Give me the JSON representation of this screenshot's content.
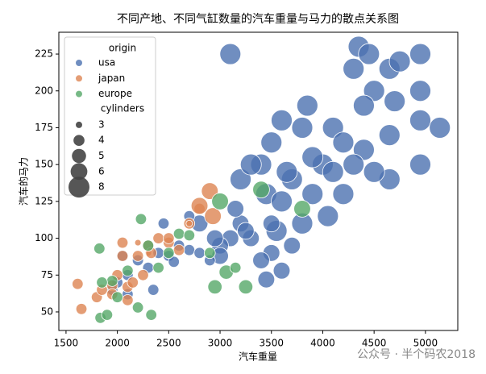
{
  "chart_data": {
    "type": "scatter",
    "title": "不同产地、不同气缸数量的汽车重量与马力的散点关系图",
    "x_label": "汽车重量",
    "y_label": "汽车的马力",
    "xlim": [
      1430,
      5315
    ],
    "ylim": [
      37.4,
      239.8
    ],
    "xticks": [
      1500,
      2000,
      2500,
      3000,
      3500,
      4000,
      4500,
      5000
    ],
    "yticks": [
      50,
      75,
      100,
      125,
      150,
      175,
      200,
      225
    ],
    "grid": false,
    "legend_position": "upper left",
    "hue_title": "origin",
    "size_title": "cylinders",
    "size_levels": [
      3,
      4,
      5,
      6,
      8
    ],
    "series": [
      {
        "name": "usa",
        "color": "#4c72b0",
        "x": [
          3100,
          4350,
          4450,
          4950,
          4300,
          4650,
          4750,
          4500,
          4950,
          4700,
          3850,
          4400,
          4950,
          5140,
          4650,
          4100,
          3800,
          3600,
          3500,
          4200,
          4400,
          4000,
          4300,
          4950,
          3400,
          4650,
          3700,
          3200,
          4200,
          3900,
          3450,
          3600,
          4050,
          3800,
          3550,
          3650,
          3900,
          3300,
          4500,
          4100,
          3200,
          3100,
          3300,
          3500,
          3400,
          2800,
          3000,
          3450,
          3600,
          3250,
          3000,
          3700,
          3150,
          2950,
          3500,
          2400,
          2600,
          2200,
          2100,
          2000,
          2300,
          2700,
          2500,
          2800,
          2050,
          1950,
          2350,
          2550,
          2900,
          2450,
          2700,
          2100
        ],
        "values": [
          225,
          230,
          225,
          225,
          215,
          215,
          220,
          200,
          200,
          193,
          190,
          190,
          180,
          175,
          170,
          175,
          175,
          180,
          165,
          165,
          160,
          150,
          150,
          150,
          150,
          140,
          140,
          140,
          130,
          130,
          130,
          125,
          115,
          110,
          105,
          145,
          155,
          150,
          145,
          145,
          110,
          100,
          100,
          90,
          85,
          110,
          95,
          72,
          78,
          105,
          88,
          95,
          120,
          100,
          110,
          90,
          95,
          85,
          75,
          70,
          80,
          92,
          88,
          90,
          88,
          65,
          65,
          84,
          85,
          110,
          115,
          62
        ],
        "cylinders": [
          8,
          8,
          8,
          8,
          8,
          8,
          8,
          8,
          8,
          8,
          8,
          8,
          8,
          8,
          8,
          8,
          8,
          8,
          8,
          8,
          8,
          8,
          8,
          8,
          8,
          8,
          8,
          8,
          8,
          8,
          8,
          8,
          8,
          8,
          8,
          8,
          8,
          8,
          8,
          8,
          6,
          6,
          6,
          6,
          6,
          6,
          6,
          6,
          6,
          6,
          6,
          6,
          6,
          6,
          6,
          4,
          4,
          4,
          4,
          4,
          4,
          4,
          4,
          4,
          4,
          4,
          4,
          4,
          4,
          4,
          4,
          4
        ]
      },
      {
        "name": "japan",
        "color": "#dd8452",
        "x": [
          1613,
          1650,
          1800,
          1850,
          1950,
          2000,
          2100,
          2200,
          2300,
          2400,
          2500,
          2600,
          2700,
          2800,
          2900,
          2930,
          2800,
          2050,
          2150,
          2300,
          2200,
          2700,
          2330,
          2250,
          2100,
          1950,
          2500,
          2050
        ],
        "values": [
          69,
          52,
          60,
          65,
          68,
          75,
          67,
          88,
          95,
          100,
          97,
          92,
          110,
          120,
          132,
          115,
          122,
          97,
          70,
          90,
          97,
          110,
          90,
          75,
          58,
          62,
          100,
          88
        ],
        "cylinders": [
          4,
          4,
          4,
          4,
          4,
          4,
          4,
          4,
          4,
          4,
          4,
          4,
          4,
          4,
          6,
          6,
          6,
          4,
          4,
          3,
          3,
          3,
          4,
          4,
          4,
          4,
          4,
          4
        ]
      },
      {
        "name": "europe",
        "color": "#55a868",
        "x": [
          1835,
          1900,
          1825,
          2230,
          2330,
          2200,
          2000,
          1950,
          2100,
          2300,
          2600,
          2900,
          3000,
          3400,
          3250,
          3060,
          2950,
          3800,
          2700,
          2400,
          1850,
          3150,
          2500
        ],
        "values": [
          46,
          48,
          93,
          113,
          48,
          53,
          60,
          71,
          78,
          95,
          103,
          90,
          125,
          133,
          67,
          77,
          67,
          120,
          102,
          80,
          70,
          80,
          90
        ],
        "cylinders": [
          4,
          4,
          4,
          4,
          4,
          4,
          4,
          4,
          4,
          4,
          4,
          4,
          6,
          6,
          5,
          5,
          5,
          6,
          4,
          4,
          4,
          4,
          4
        ]
      }
    ]
  },
  "watermark": "公众号 · 半个码农2018"
}
